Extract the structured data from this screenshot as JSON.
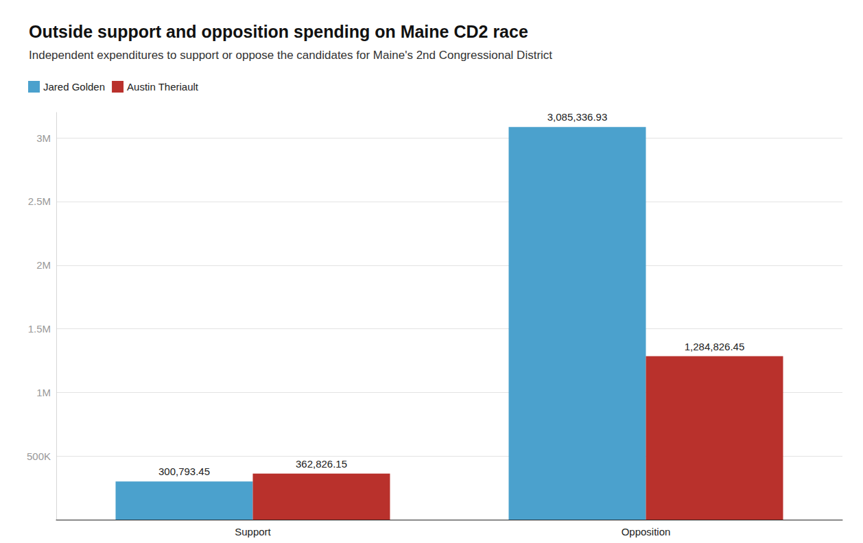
{
  "chart_data": {
    "type": "bar",
    "title": "Outside support and opposition spending on Maine CD2 race",
    "subtitle": "Independent expenditures to support or oppose the candidates for Maine's 2nd Congressional District",
    "categories": [
      "Support",
      "Opposition"
    ],
    "series": [
      {
        "name": "Jared Golden",
        "color": "#4ba1cd",
        "values": [
          300793.45,
          3085336.93
        ],
        "value_labels": [
          "300,793.45",
          "3,085,336.93"
        ]
      },
      {
        "name": "Austin Theriault",
        "color": "#b9312c",
        "values": [
          362826.15,
          1284826.45
        ],
        "value_labels": [
          "362,826.15",
          "1,284,826.45"
        ]
      }
    ],
    "ylim": [
      0,
      3200000
    ],
    "yticks": [
      {
        "value": 500000,
        "label": "500K"
      },
      {
        "value": 1000000,
        "label": "1M"
      },
      {
        "value": 1500000,
        "label": "1.5M"
      },
      {
        "value": 2000000,
        "label": "2M"
      },
      {
        "value": 2500000,
        "label": "2.5M"
      },
      {
        "value": 3000000,
        "label": "3M"
      }
    ],
    "grid": true,
    "legend": "top-left",
    "data_labels": true
  }
}
